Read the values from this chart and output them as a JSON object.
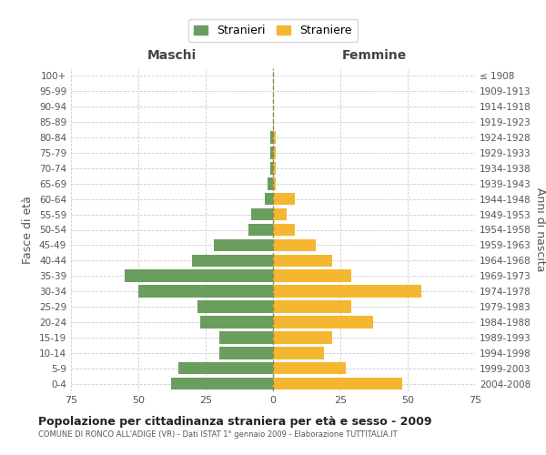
{
  "age_groups": [
    "0-4",
    "5-9",
    "10-14",
    "15-19",
    "20-24",
    "25-29",
    "30-34",
    "35-39",
    "40-44",
    "45-49",
    "50-54",
    "55-59",
    "60-64",
    "65-69",
    "70-74",
    "75-79",
    "80-84",
    "85-89",
    "90-94",
    "95-99",
    "100+"
  ],
  "birth_years": [
    "2004-2008",
    "1999-2003",
    "1994-1998",
    "1989-1993",
    "1984-1988",
    "1979-1983",
    "1974-1978",
    "1969-1973",
    "1964-1968",
    "1959-1963",
    "1954-1958",
    "1949-1953",
    "1944-1948",
    "1939-1943",
    "1934-1938",
    "1929-1933",
    "1924-1928",
    "1919-1923",
    "1914-1918",
    "1909-1913",
    "≤ 1908"
  ],
  "males": [
    38,
    35,
    20,
    20,
    27,
    28,
    50,
    55,
    30,
    22,
    9,
    8,
    3,
    2,
    1,
    1,
    1,
    0,
    0,
    0,
    0
  ],
  "females": [
    48,
    27,
    19,
    22,
    37,
    29,
    55,
    29,
    22,
    16,
    8,
    5,
    8,
    1,
    1,
    1,
    1,
    0,
    0,
    0,
    0
  ],
  "male_color": "#6a9e5f",
  "female_color": "#f5b731",
  "grid_color": "#cccccc",
  "center_line_color": "#8b8b4e",
  "bg_color": "#ffffff",
  "title": "Popolazione per cittadinanza straniera per età e sesso - 2009",
  "subtitle": "COMUNE DI RONCO ALL'ADIGE (VR) - Dati ISTAT 1° gennaio 2009 - Elaborazione TUTTITALIA.IT",
  "left_label": "Maschi",
  "right_label": "Femmine",
  "y_left_label": "Fasce di età",
  "y_right_label": "Anni di nascita",
  "legend_male": "Stranieri",
  "legend_female": "Straniere",
  "xlim": 75
}
